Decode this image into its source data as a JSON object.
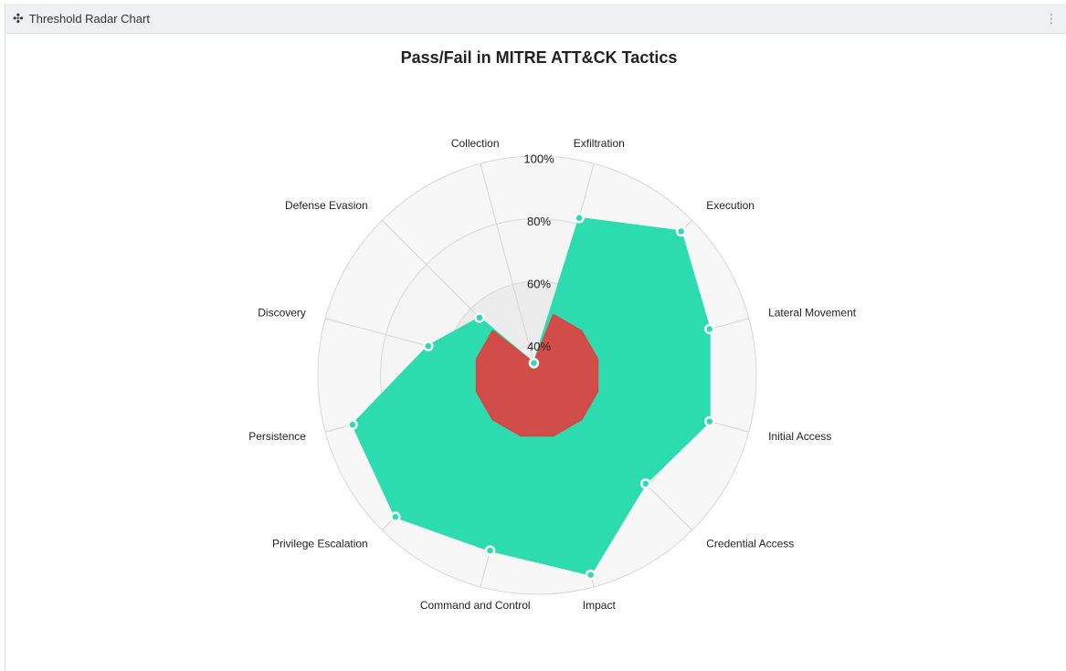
{
  "panel": {
    "title": "Threshold Radar Chart"
  },
  "chart_data": {
    "type": "radar",
    "title": "Pass/Fail in MITRE ATT&CK Tactics",
    "categories": [
      "Exfiltration",
      "Execution",
      "Lateral Movement",
      "Initial Access",
      "Credential Access",
      "Impact",
      "Command and Control",
      "Privilege Escalation",
      "Persistence",
      "Discovery",
      "Defense Evasion",
      "Collection"
    ],
    "series": [
      {
        "color": "#2ddcae",
        "values": [
          82,
          95,
          87,
          87,
          79,
          96,
          88,
          94,
          91,
          66,
          56,
          34
        ]
      },
      {
        "color": "#d94545",
        "values": [
          50,
          50,
          50,
          50,
          50,
          50,
          50,
          50,
          50,
          50,
          50,
          34
        ]
      }
    ],
    "ylim": [
      30,
      100
    ],
    "yticks": [
      {
        "value": 40,
        "label": "40%"
      },
      {
        "value": 60,
        "label": "60%"
      },
      {
        "value": 80,
        "label": "80%"
      },
      {
        "value": 100,
        "label": "100%"
      }
    ],
    "grid": true
  }
}
